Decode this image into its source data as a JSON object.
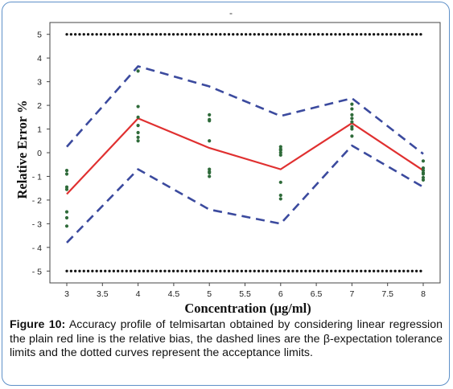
{
  "chart_data": {
    "type": "line",
    "title": "",
    "top_mark": "-",
    "xlabel": "Concentration (μg/ml)",
    "ylabel": "Relative Error %",
    "xlim": [
      3,
      8
    ],
    "ylim": [
      -5.5,
      5.5
    ],
    "x_ticks": [
      3,
      3.5,
      4,
      4.5,
      5,
      5.5,
      6,
      6.5,
      7,
      7.5,
      8
    ],
    "x_tick_labels": [
      "3",
      "3.5",
      "4",
      "4.5",
      "5",
      "5.5",
      "6",
      "6.5",
      "7",
      "7.5",
      "8"
    ],
    "y_ticks": [
      5,
      4,
      3,
      2,
      1,
      0,
      -1,
      -2,
      -3,
      -4,
      -5
    ],
    "y_tick_labels": [
      "5",
      "4",
      "3",
      "2",
      "1",
      "0",
      "- 1",
      "- 2",
      "- 3",
      "- 4",
      "- 5"
    ],
    "grid": false,
    "legend": "none",
    "series": [
      {
        "x": [
          3,
          4,
          5,
          6,
          7,
          8
        ],
        "values": [
          -1.75,
          1.45,
          0.2,
          -0.7,
          1.25,
          -0.75
        ],
        "color": "#e03030",
        "style": "solid"
      },
      {
        "x": [
          3,
          4,
          5,
          6,
          7,
          8
        ],
        "values": [
          0.25,
          3.65,
          2.8,
          1.55,
          2.3,
          -0.05
        ],
        "color": "#3b4a9e",
        "style": "dashed"
      },
      {
        "x": [
          3,
          4,
          5,
          6,
          7,
          8
        ],
        "values": [
          -3.8,
          -0.7,
          -2.4,
          -3.0,
          0.3,
          -1.45
        ],
        "color": "#3b4a9e",
        "style": "dashed"
      },
      {
        "x": [
          3,
          8
        ],
        "values": [
          5,
          5
        ],
        "color": "#111111",
        "style": "dotted"
      },
      {
        "x": [
          3,
          8
        ],
        "values": [
          -5,
          -5
        ],
        "color": "#111111",
        "style": "dotted"
      }
    ],
    "points": {
      "color": "#2f6b3a",
      "x": [
        3,
        3,
        3,
        3,
        3,
        3,
        3,
        4,
        4,
        4,
        4,
        4,
        4,
        4,
        5,
        5,
        5,
        5,
        5,
        5,
        5,
        5,
        6,
        6,
        6,
        6,
        6,
        6,
        6,
        6,
        7,
        7,
        7,
        7,
        7,
        7,
        7,
        7,
        8,
        8,
        8,
        8,
        8,
        8,
        8
      ],
      "y": [
        -0.75,
        -0.9,
        -1.45,
        -1.55,
        -2.5,
        -2.75,
        -3.1,
        3.45,
        1.95,
        1.5,
        1.15,
        0.85,
        0.65,
        0.5,
        1.6,
        1.4,
        1.35,
        0.5,
        -0.7,
        -0.8,
        -0.85,
        -1.0,
        0.25,
        0.15,
        0.1,
        0.0,
        -0.1,
        -1.25,
        -1.8,
        -1.95,
        2.05,
        1.85,
        1.6,
        1.45,
        1.3,
        1.1,
        1.0,
        0.7,
        -0.35,
        -0.65,
        -0.75,
        -0.85,
        -0.9,
        -1.05,
        -1.15
      ]
    }
  },
  "caption": {
    "lead": "Figure 10:",
    "text": " Accuracy profile of telmisartan obtained by considering linear regression the plain red line is the relative bias, the dashed lines are the β-expectation tolerance limits and the dotted curves represent the acceptance limits."
  }
}
